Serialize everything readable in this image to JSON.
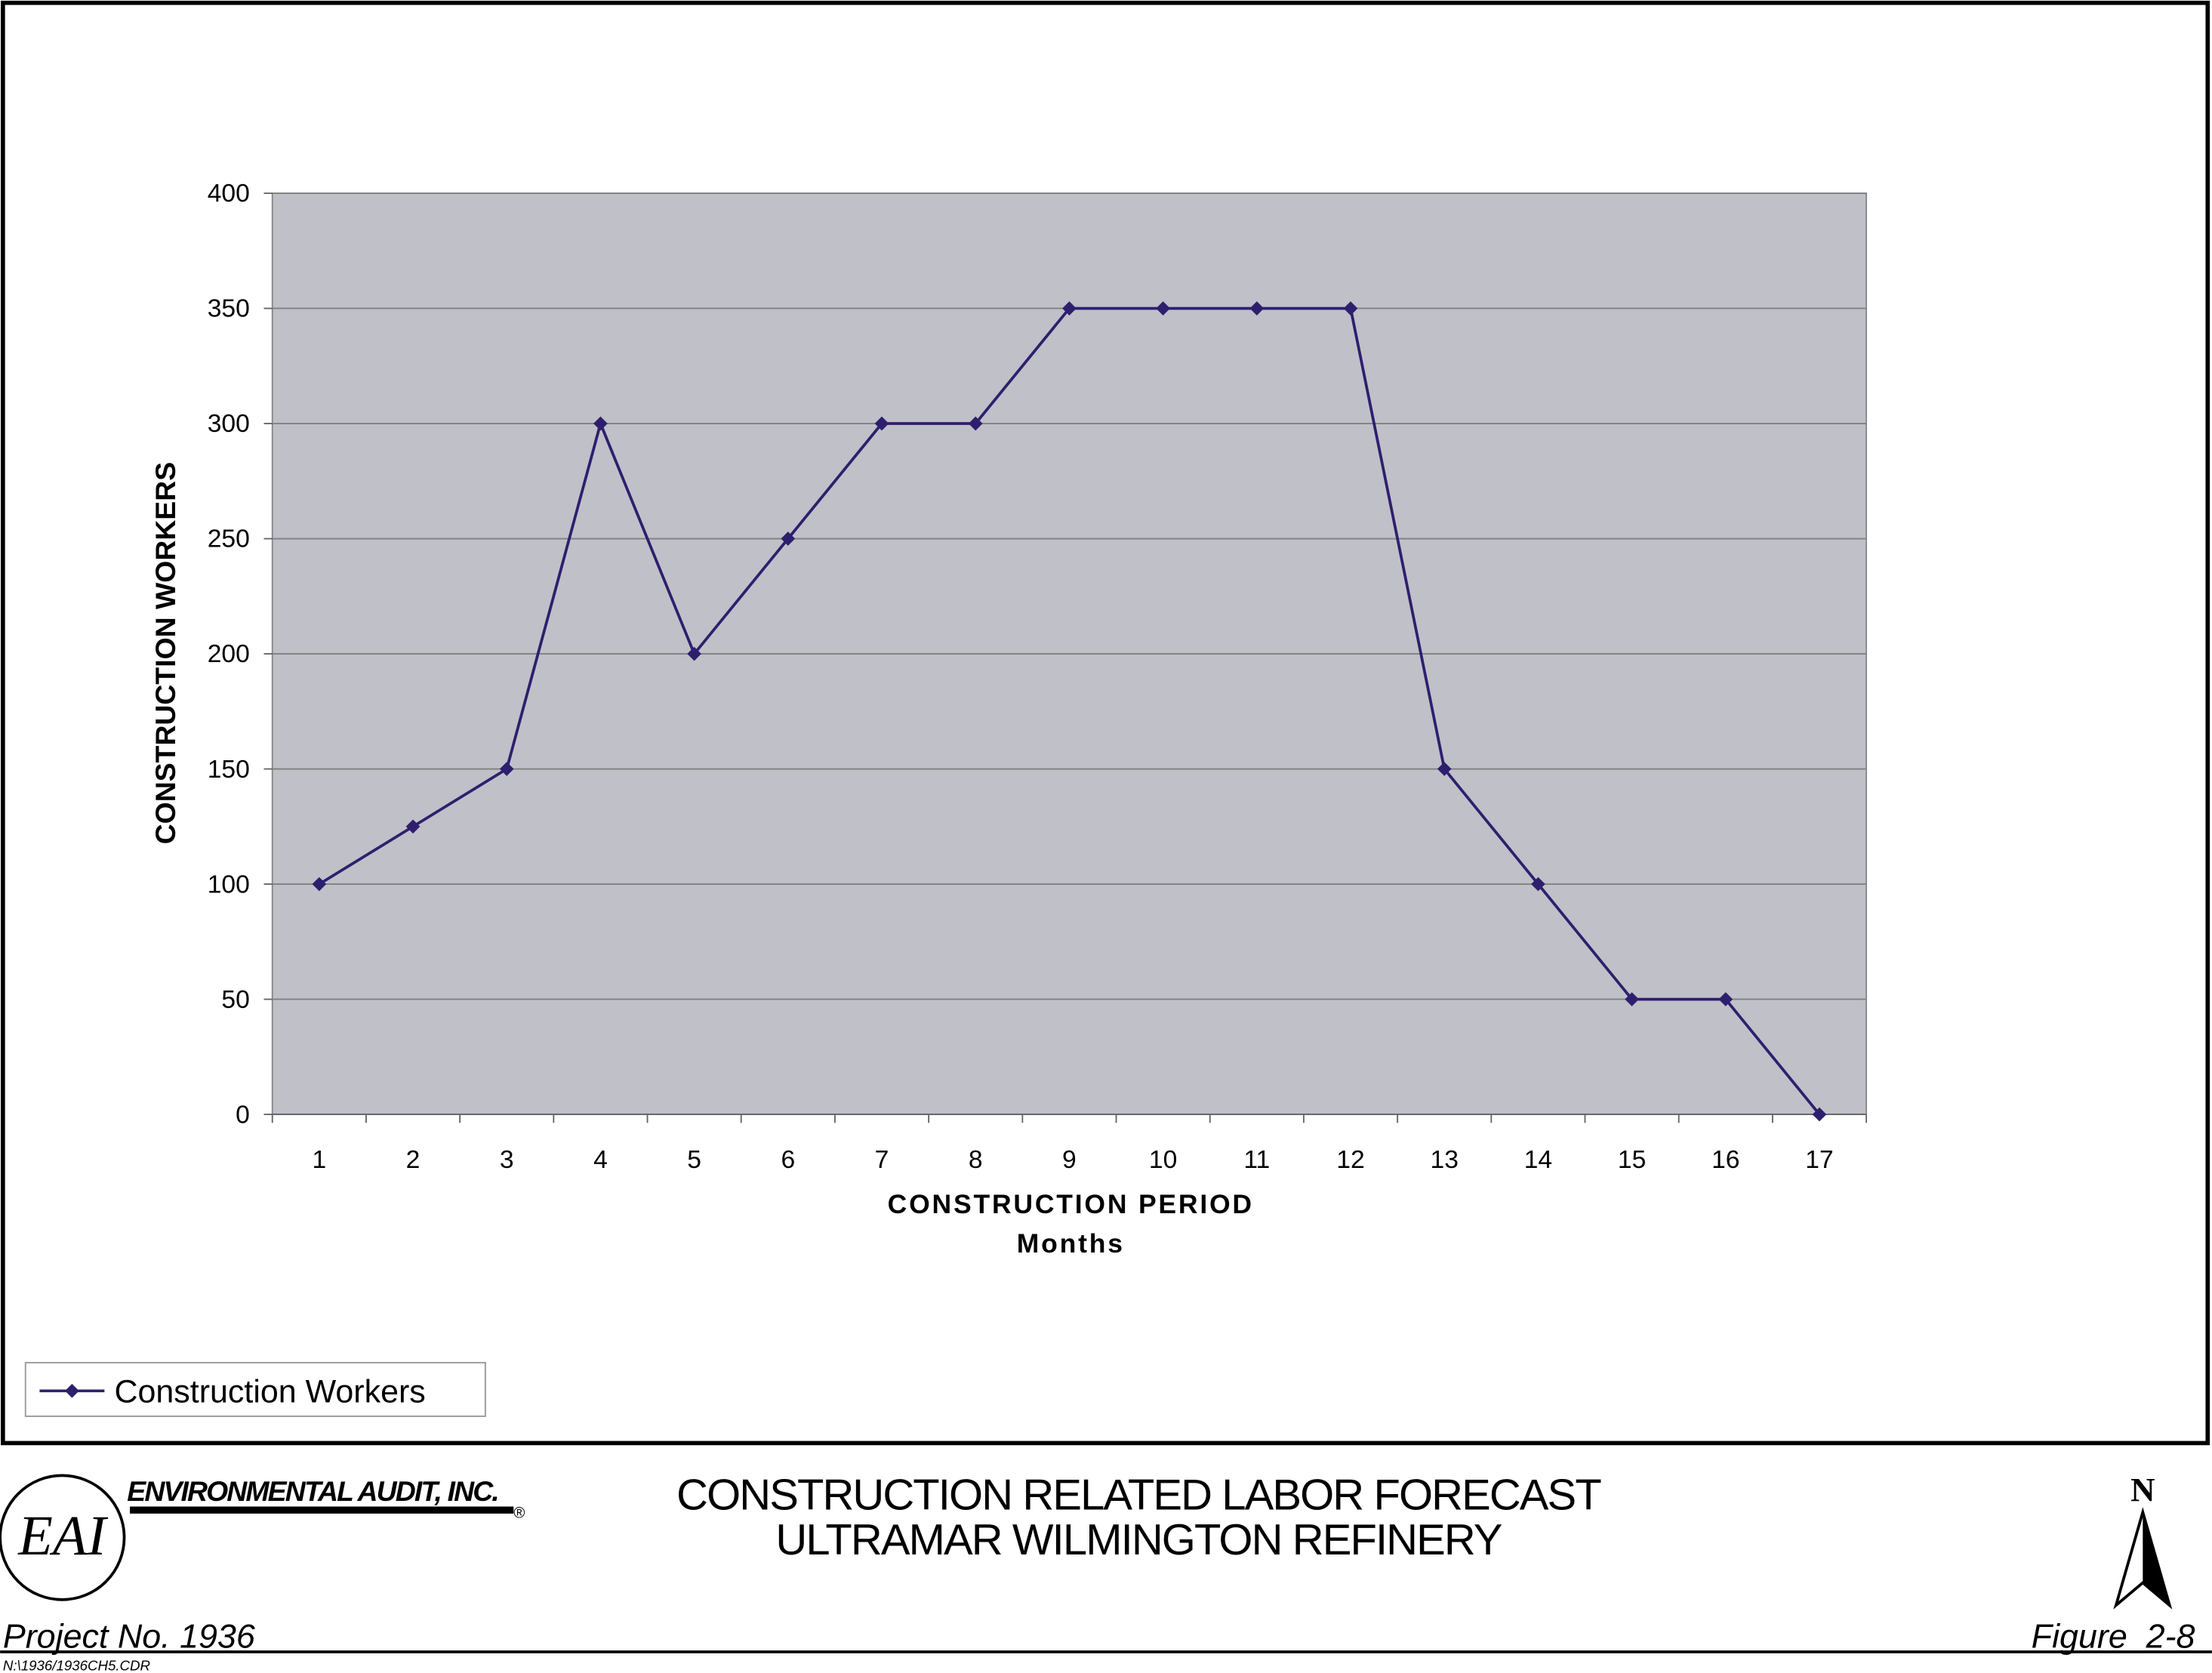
{
  "chart_data": {
    "type": "line",
    "x_label": "CONSTRUCTION PERIOD",
    "x_sublabel": "Months",
    "y_label": "CONSTRUCTION WORKERS",
    "categories": [
      "1",
      "2",
      "3",
      "4",
      "5",
      "6",
      "7",
      "8",
      "9",
      "10",
      "11",
      "12",
      "13",
      "14",
      "15",
      "16",
      "17"
    ],
    "series": [
      {
        "name": "Construction Workers",
        "color": "#2e1f6e",
        "values": [
          100,
          125,
          150,
          300,
          200,
          250,
          300,
          300,
          350,
          350,
          350,
          350,
          150,
          100,
          50,
          50,
          0
        ]
      }
    ],
    "ylim": [
      0,
      400
    ],
    "yticks": [
      0,
      50,
      100,
      150,
      200,
      250,
      300,
      350,
      400
    ],
    "grid": true,
    "legend": "bottom-left"
  },
  "footer": {
    "company": "ENVIRONMENTAL AUDIT, INC.",
    "registered": "®",
    "logo": "EAI",
    "title_lines": [
      "CONSTRUCTION RELATED LABOR FORECAST",
      "ULTRAMAR WILMINGTON REFINERY"
    ],
    "project": "Project No. 1936",
    "figure": "Figure  2-8",
    "file": "N:\\1936/1936CH5.CDR",
    "north": "N"
  }
}
